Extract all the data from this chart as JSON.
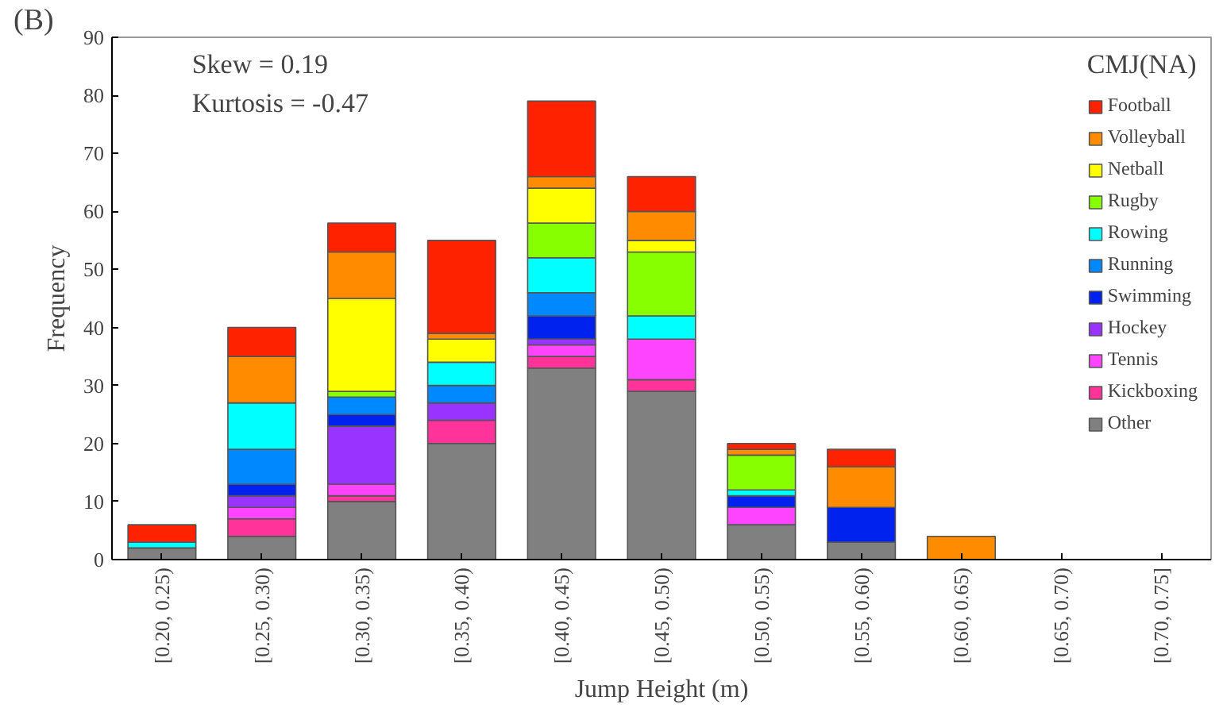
{
  "chart_data": {
    "type": "bar",
    "stacked": true,
    "xlabel": "Jump Height (m)",
    "ylabel": "Frequency",
    "legend_title": "CMJ(NA)",
    "legend": "top right",
    "grid": false,
    "annotations": [
      "(B)",
      "Skew = 0.19",
      "Kurtosis = -0.47"
    ],
    "categories": [
      "[0.20, 0.25)",
      "[0.25, 0.30)",
      "[0.30, 0.35)",
      "[0.35, 0.40)",
      "[0.40, 0.45)",
      "[0.45, 0.50)",
      "[0.50, 0.55)",
      "[0.55, 0.60)",
      "[0.60, 0.65)",
      "[0.65, 0.70)",
      "[0.70, 0.75]"
    ],
    "ylim": [
      0,
      90
    ],
    "yticks": [
      0,
      10,
      20,
      30,
      40,
      50,
      60,
      70,
      80,
      90
    ],
    "series": [
      {
        "name": "Other",
        "color": "#808080",
        "values": [
          2,
          4,
          10,
          20,
          33,
          29,
          6,
          3,
          null,
          null,
          null
        ]
      },
      {
        "name": "Kickboxing",
        "color": "#ff3399",
        "values": [
          null,
          3,
          1,
          4,
          2,
          2,
          null,
          null,
          null,
          null,
          null
        ]
      },
      {
        "name": "Tennis",
        "color": "#ff44ff",
        "values": [
          null,
          2,
          2,
          null,
          2,
          7,
          3,
          null,
          null,
          null,
          null
        ]
      },
      {
        "name": "Hockey",
        "color": "#9933ff",
        "values": [
          null,
          2,
          10,
          3,
          1,
          null,
          null,
          null,
          null,
          null,
          null
        ]
      },
      {
        "name": "Swimming",
        "color": "#0022ee",
        "values": [
          null,
          2,
          2,
          null,
          4,
          null,
          2,
          6,
          null,
          null,
          null
        ]
      },
      {
        "name": "Running",
        "color": "#0088ff",
        "values": [
          null,
          6,
          3,
          3,
          4,
          null,
          null,
          null,
          null,
          null,
          null
        ]
      },
      {
        "name": "Rowing",
        "color": "#00ffff",
        "values": [
          1,
          8,
          null,
          4,
          6,
          4,
          1,
          null,
          null,
          null,
          null
        ]
      },
      {
        "name": "Rugby",
        "color": "#88ff00",
        "values": [
          null,
          null,
          1,
          null,
          6,
          11,
          6,
          null,
          null,
          null,
          null
        ]
      },
      {
        "name": "Netball",
        "color": "#ffff00",
        "values": [
          null,
          null,
          16,
          4,
          6,
          2,
          null,
          null,
          null,
          null,
          null
        ]
      },
      {
        "name": "Volleyball",
        "color": "#ff8c00",
        "values": [
          null,
          8,
          8,
          1,
          2,
          5,
          1,
          7,
          4,
          null,
          null
        ]
      },
      {
        "name": "Football",
        "color": "#ff2200",
        "values": [
          3,
          5,
          5,
          16,
          13,
          6,
          1,
          3,
          null,
          null,
          null
        ]
      }
    ]
  }
}
